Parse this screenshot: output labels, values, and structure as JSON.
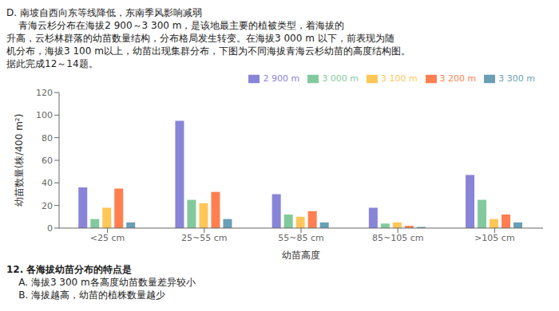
{
  "chart_data": {
    "type": "bar",
    "xlabel": "幼苗高度",
    "ylabel": "幼苗数量(株/400 m²)",
    "categories": [
      "<25 cm",
      "25~55 cm",
      "55~85 cm",
      "85~105 cm",
      ">105 cm"
    ],
    "series": [
      {
        "name": "2 900 m",
        "color": "#8884d8",
        "values": [
          36,
          95,
          30,
          18,
          47
        ]
      },
      {
        "name": "3 000 m",
        "color": "#82ca9d",
        "values": [
          8,
          25,
          12,
          4,
          25
        ]
      },
      {
        "name": "3 100 m",
        "color": "#ffc658",
        "values": [
          18,
          22,
          10,
          5,
          8
        ]
      },
      {
        "name": "3 200 m",
        "color": "#ff7f50",
        "values": [
          35,
          32,
          15,
          2,
          12
        ]
      },
      {
        "name": "3 300 m",
        "color": "#6a9fb5",
        "values": [
          5,
          8,
          5,
          1,
          5
        ]
      }
    ],
    "ylim": [
      0,
      120
    ],
    "yticks": [
      0,
      20,
      40,
      60,
      80,
      100,
      120
    ],
    "grid": false,
    "legend": "upper right",
    "annotations": [
      [
        "D. 南坡自西向东等线降低，东南季风影响减弱",
        "    青海云杉分布在海拔2 900～3 300 m，是该地最主要的植被类型，着海拔的",
        "升高，云杉林群落的幼苗数量结构，分布格局发生转变。在海拔3 000 m 以下，前表现为随",
        "机分布，海拔3 100 m以上，幼苗出现集群分布，下图为不同海拔青海云杉幼苗的高度结构图。",
        "据此完成12～14题。"
      ],
      [
        "12. 各海拔幼苗分布的特点是",
        "    A. 海拔3 300 m各高度幼苗数量差异较小",
        "    B. 海拔越高，幼苗的植株数量越少"
      ]
    ]
  }
}
